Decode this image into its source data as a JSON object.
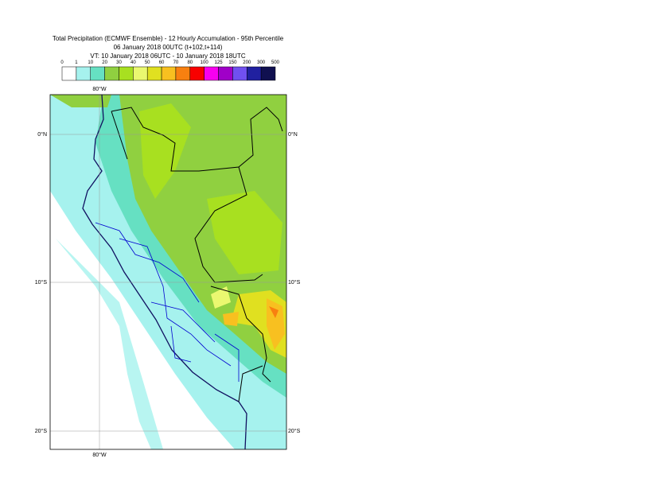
{
  "header": {
    "title": "Total Precipitation (ECMWF Ensemble) - 12 Hourly Accumulation - 95th Percentile",
    "subtitle": "06 January 2018 00UTC (t+102,t+114)",
    "valid_time": "VT: 10 January 2018 06UTC - 10 January 2018 18UTC"
  },
  "legend": {
    "labels": [
      "0",
      "1",
      "10",
      "20",
      "30",
      "40",
      "50",
      "60",
      "70",
      "80",
      "100",
      "125",
      "150",
      "200",
      "300",
      "500"
    ],
    "colors": [
      "#ffffff",
      "#a6f2ee",
      "#66e0c2",
      "#90d040",
      "#a8e020",
      "#eaf870",
      "#e0e020",
      "#f8c020",
      "#f88010",
      "#f80000",
      "#f800f0",
      "#a000c8",
      "#7050f0",
      "#2020a0",
      "#101050"
    ]
  },
  "map": {
    "lon_label": "80°W",
    "lat_labels": [
      "0°N",
      "10°S",
      "20°S"
    ]
  }
}
